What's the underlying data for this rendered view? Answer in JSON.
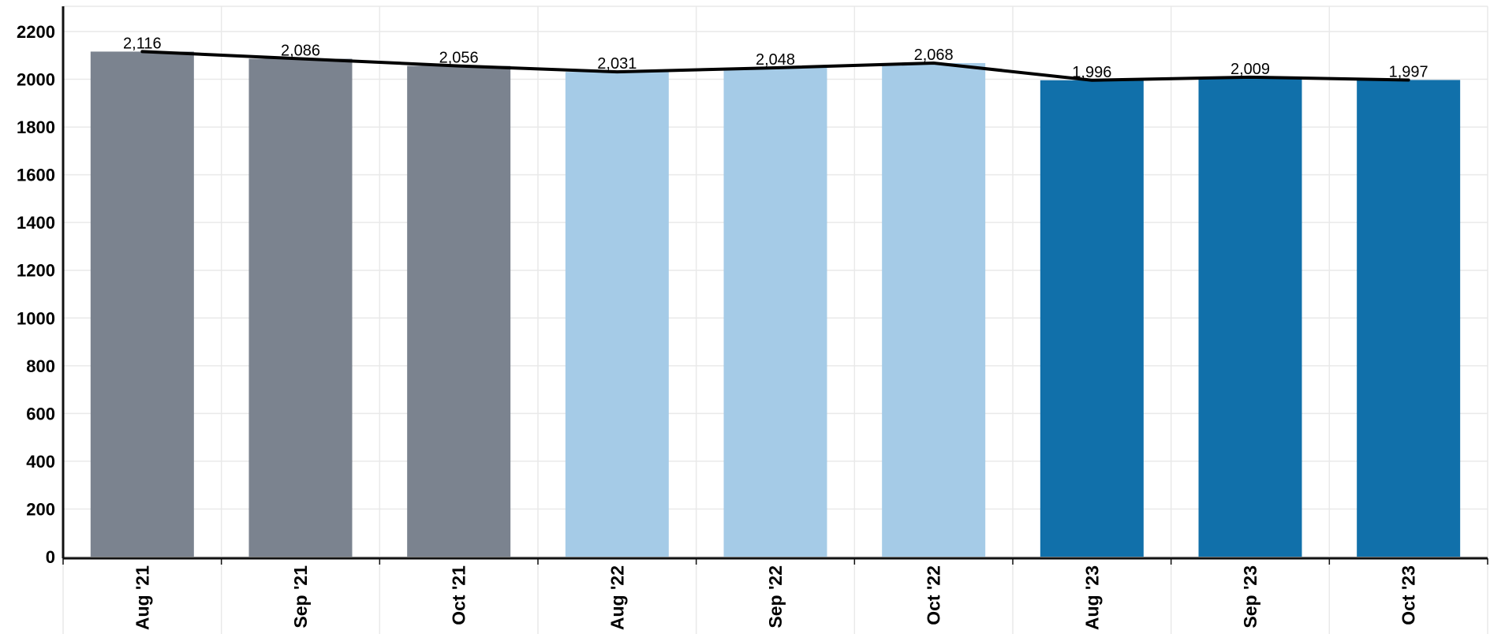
{
  "chart_data": {
    "type": "bar",
    "title": "",
    "xlabel": "",
    "ylabel": "",
    "categories": [
      "Aug '21",
      "Sep '21",
      "Oct '21",
      "Aug '22",
      "Sep '22",
      "Oct '22",
      "Aug '23",
      "Sep '23",
      "Oct '23"
    ],
    "values": [
      2116,
      2086,
      2056,
      2031,
      2048,
      2068,
      1996,
      2009,
      1997
    ],
    "data_labels": [
      "2,116",
      "2,086",
      "2,056",
      "2,031",
      "2,048",
      "2,068",
      "1,996",
      "2,009",
      "1,997"
    ],
    "bar_colors": [
      "#7b838f",
      "#7b838f",
      "#7b838f",
      "#a5cbe7",
      "#a5cbe7",
      "#a5cbe7",
      "#1170aa",
      "#1170aa",
      "#1170aa"
    ],
    "line_overlay": {
      "values": [
        2116,
        2086,
        2056,
        2031,
        2048,
        2068,
        1996,
        2009,
        1997
      ],
      "color": "#000000"
    },
    "ylim": [
      0,
      2300
    ],
    "yticks": [
      0,
      200,
      400,
      600,
      800,
      1000,
      1200,
      1400,
      1600,
      1800,
      2000,
      2200
    ],
    "grid": true,
    "legend": "none"
  }
}
